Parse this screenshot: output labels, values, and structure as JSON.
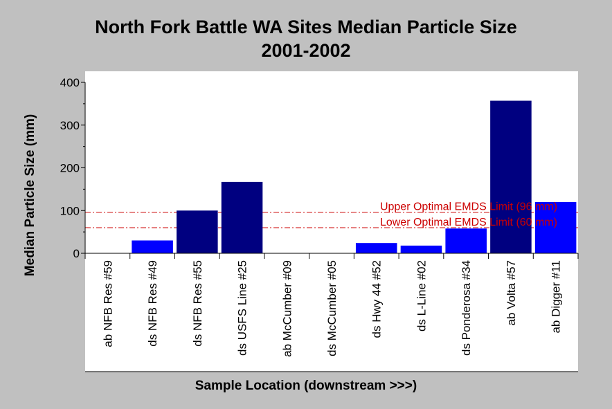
{
  "chart_data": {
    "type": "bar",
    "title": [
      "North Fork Battle WA Sites Median Particle Size",
      "2001-2002"
    ],
    "xlabel": "Sample Location (downstream >>>)",
    "ylabel": "Median Particle Size (mm)",
    "ylim": [
      0,
      400
    ],
    "yticks": [
      0,
      100,
      200,
      300,
      400
    ],
    "categories": [
      "ab NFB Res #59",
      "ds NFB Res #49",
      "ds NFB Res #55",
      "ds USFS Line #25",
      "ab McCumber #09",
      "ds McCumber #05",
      "ds Hwy 44 #52",
      "ds L-Line #02",
      "ds Ponderosa #34",
      "ab Volta #57",
      "ab Digger #11"
    ],
    "values": [
      0,
      30,
      100,
      167,
      0,
      0,
      24,
      18,
      58,
      357,
      120
    ],
    "bar_colors": [
      "#0000ff",
      "#0000ff",
      "#000080",
      "#000080",
      "#0000ff",
      "#000080",
      "#0000ff",
      "#0000ff",
      "#0000ff",
      "#000080",
      "#0000ff"
    ],
    "reference_lines": [
      {
        "label": "Upper Optimal EMDS Limit (96 mm)",
        "value": 96,
        "color": "#cc0000"
      },
      {
        "label": "Lower Optimal EMDS Limit (60 mm)",
        "value": 60,
        "color": "#cc0000"
      }
    ],
    "grid": false,
    "legend": "none"
  }
}
